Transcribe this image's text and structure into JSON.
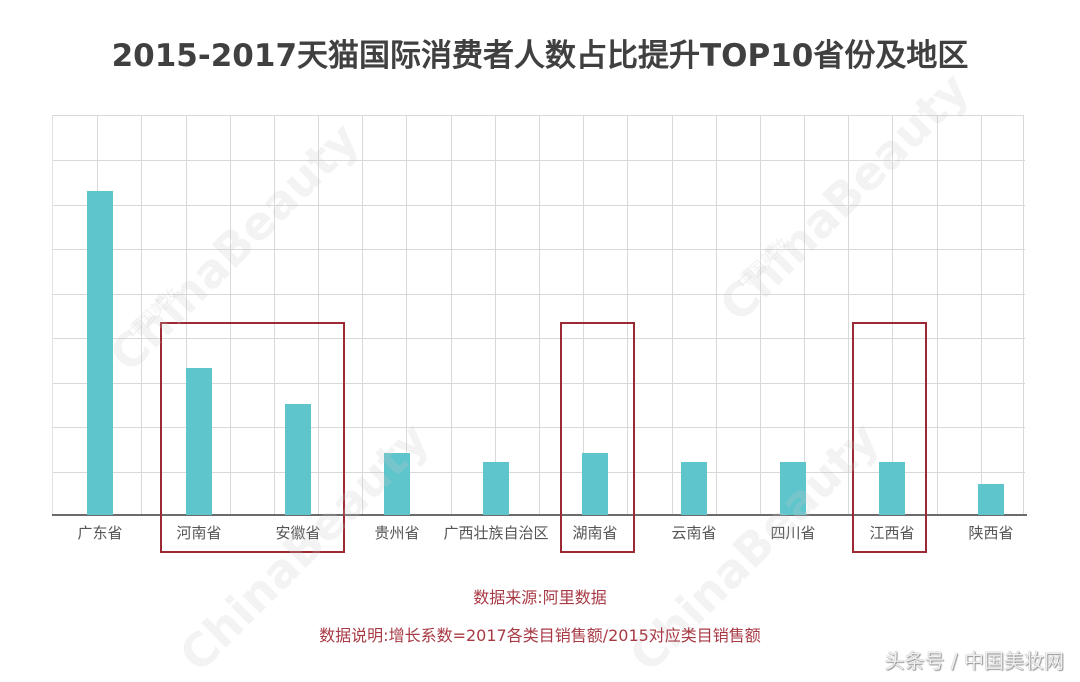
{
  "chart_data": {
    "type": "bar",
    "title": "2015-2017天猫国际消费者人数占比提升TOP10省份及地区",
    "categories": [
      "广东省",
      "河南省",
      "安徽省",
      "贵州省",
      "广西壮族自治区",
      "湖南省",
      "云南省",
      "四川省",
      "江西省",
      "陕西省"
    ],
    "values": [
      7.3,
      3.3,
      2.5,
      1.4,
      1.2,
      1.4,
      1.2,
      1.2,
      1.2,
      0.7
    ],
    "value_unit": "grid units (no y-axis tick labels shown)",
    "xlabel": "",
    "ylabel": "",
    "ylim": [
      0,
      9
    ],
    "grid": true,
    "legend": null,
    "bar_color": "#5fc5cc",
    "highlighted_categories": [
      [
        "河南省",
        "安徽省"
      ],
      [
        "湖南省"
      ],
      [
        "江西省"
      ]
    ],
    "highlight_color": "#9b2a35",
    "annotations": [
      "数据来源:阿里数据",
      "数据说明:增长系数=2017各类目销售额/2015对应类目销售额"
    ]
  },
  "notes": {
    "source": "数据来源:阿里数据",
    "explanation": "数据说明:增长系数=2017各类目销售额/2015对应类目销售额"
  },
  "footer": {
    "credit": "头条号 / 中国美妆网"
  },
  "watermark": {
    "text": "ChinaBeauty",
    "sub": "中国美妆"
  }
}
